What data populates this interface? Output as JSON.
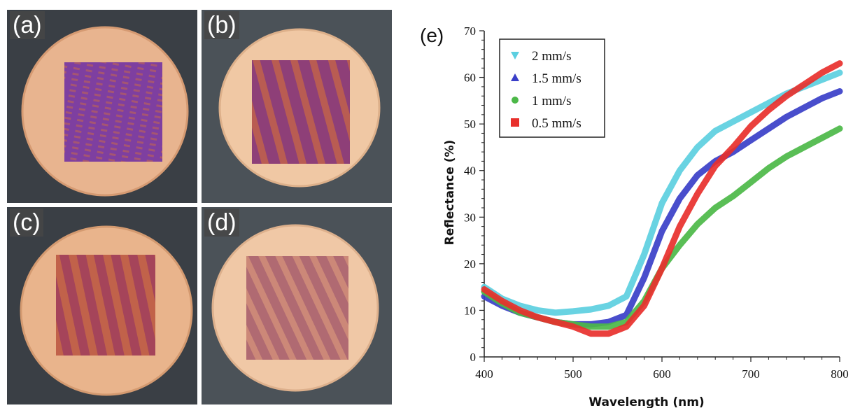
{
  "photos": [
    {
      "label": "(a)"
    },
    {
      "label": "(b)"
    },
    {
      "label": "(c)"
    },
    {
      "label": "(d)"
    }
  ],
  "colors": {
    "disk": "#e8b48f",
    "disk_edge": "#d59a72",
    "square_a": "#7e3fa0",
    "square_b": "#8e3f78",
    "square_c": "#a5445a",
    "square_d": "#b06a72"
  },
  "chart_data": {
    "type": "scatter",
    "panel_label": "(e)",
    "xlabel": "Wavelength (nm)",
    "ylabel": "Reflectance (%)",
    "xlim": [
      400,
      800
    ],
    "ylim": [
      0,
      70
    ],
    "x_ticks": [
      400,
      500,
      600,
      700,
      800
    ],
    "y_ticks": [
      0,
      10,
      20,
      30,
      40,
      50,
      60,
      70
    ],
    "legend_position": "top-left",
    "x": [
      400,
      420,
      440,
      460,
      480,
      500,
      520,
      540,
      560,
      580,
      600,
      620,
      640,
      660,
      680,
      700,
      720,
      740,
      760,
      780,
      800
    ],
    "series": [
      {
        "name": "2 mm/s",
        "color": "#5ccfe0",
        "marker": "triangle-down",
        "values": [
          15,
          12.5,
          11,
          10,
          9.5,
          9.8,
          10.2,
          11,
          13,
          22,
          33,
          40,
          45,
          48.5,
          50.5,
          52.5,
          54.5,
          56.5,
          58,
          59.5,
          61
        ]
      },
      {
        "name": "1.5 mm/s",
        "color": "#3a3fc8",
        "marker": "triangle-up",
        "values": [
          13,
          11,
          9.5,
          8.5,
          7.5,
          7,
          7,
          7.5,
          9,
          17,
          27,
          34,
          39,
          42,
          44,
          46.5,
          49,
          51.5,
          53.5,
          55.5,
          57
        ]
      },
      {
        "name": "1 mm/s",
        "color": "#4cb848",
        "marker": "circle",
        "values": [
          14,
          11.5,
          9.5,
          8.5,
          7.5,
          7,
          6.5,
          6.5,
          7.5,
          12,
          19,
          24,
          28.5,
          32,
          34.5,
          37.5,
          40.5,
          43,
          45,
          47,
          49
        ]
      },
      {
        "name": "0.5 mm/s",
        "color": "#e8302c",
        "marker": "square",
        "values": [
          14.5,
          12,
          10,
          8.5,
          7.5,
          6.5,
          5,
          5,
          6.5,
          11,
          19,
          28,
          35,
          41,
          45,
          49.5,
          53,
          56,
          58.5,
          61,
          63
        ]
      }
    ]
  }
}
